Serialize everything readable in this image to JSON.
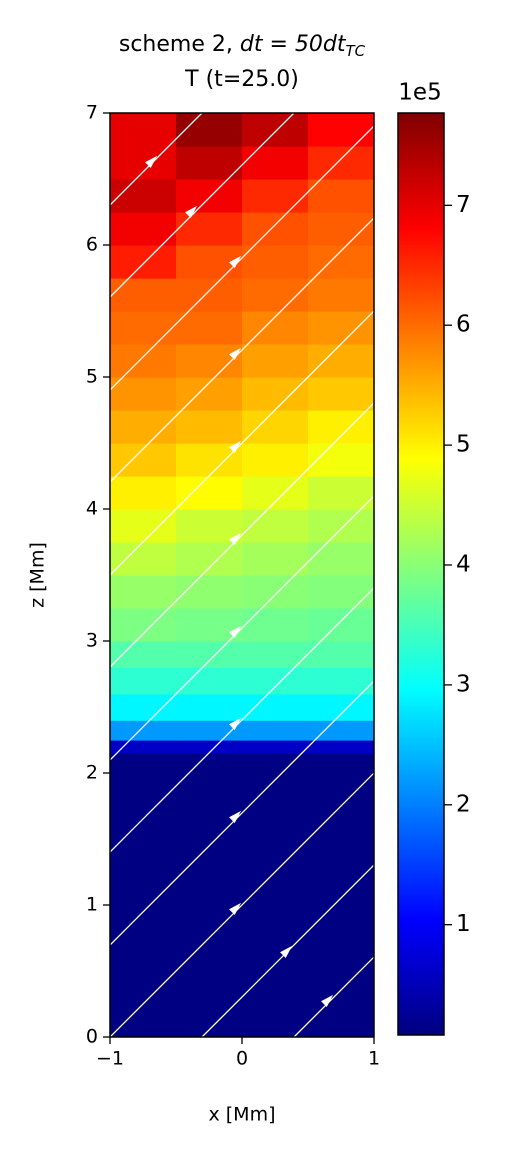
{
  "chart_data": {
    "type": "heatmap",
    "title": {
      "text": "scheme 2, ",
      "math": "dt = 50dt",
      "subscript": "TC"
    },
    "subtitle": "T (t=25.0)",
    "x_label": "x [Mm]",
    "y_label": "z [Mm]",
    "xlim": [
      -1,
      1
    ],
    "xticks": [
      {
        "value": -1,
        "label": "−1"
      },
      0,
      1
    ],
    "ylim": [
      0,
      7
    ],
    "yticks": [
      0,
      1,
      2,
      3,
      4,
      5,
      6,
      7
    ],
    "colormap": "jet",
    "clim": [
      0.08,
      7.77
    ],
    "cbar_ticks": [
      1,
      2,
      3,
      4,
      5,
      6,
      7
    ],
    "cbar_offset_label": "1e5",
    "x_edges": [
      -1,
      -0.5,
      0,
      0.5,
      1
    ],
    "z_edges": [
      0,
      2.15,
      2.25,
      2.4,
      2.6,
      2.8,
      3.0,
      3.25,
      3.5,
      3.75,
      4.0,
      4.25,
      4.5,
      4.75,
      5.0,
      5.25,
      5.5,
      5.75,
      6.0,
      6.25,
      6.5,
      6.75,
      7.0
    ],
    "values": [
      [
        0.1,
        0.1,
        0.1,
        0.1
      ],
      [
        0.6,
        0.6,
        0.6,
        0.6
      ],
      [
        2.2,
        2.2,
        2.2,
        2.2
      ],
      [
        2.9,
        2.9,
        2.9,
        2.9
      ],
      [
        3.3,
        3.3,
        3.3,
        3.3
      ],
      [
        3.6,
        3.6,
        3.6,
        3.6
      ],
      [
        3.9,
        3.85,
        3.8,
        3.75
      ],
      [
        4.1,
        4.05,
        4.0,
        3.95
      ],
      [
        4.4,
        4.3,
        4.2,
        4.1
      ],
      [
        4.7,
        4.5,
        4.4,
        4.3
      ],
      [
        5.0,
        4.9,
        4.7,
        4.5
      ],
      [
        5.3,
        5.1,
        5.0,
        4.8
      ],
      [
        5.5,
        5.4,
        5.2,
        5.0
      ],
      [
        5.7,
        5.6,
        5.4,
        5.3
      ],
      [
        5.9,
        5.8,
        5.6,
        5.5
      ],
      [
        6.0,
        6.0,
        5.8,
        5.7
      ],
      [
        6.1,
        6.1,
        6.0,
        5.9
      ],
      [
        6.6,
        6.2,
        6.1,
        6.0
      ],
      [
        6.9,
        6.5,
        6.2,
        6.1
      ],
      [
        7.2,
        6.9,
        6.5,
        6.2
      ],
      [
        7.0,
        7.3,
        6.9,
        6.5
      ],
      [
        7.0,
        7.6,
        7.3,
        6.8
      ]
    ]
  }
}
